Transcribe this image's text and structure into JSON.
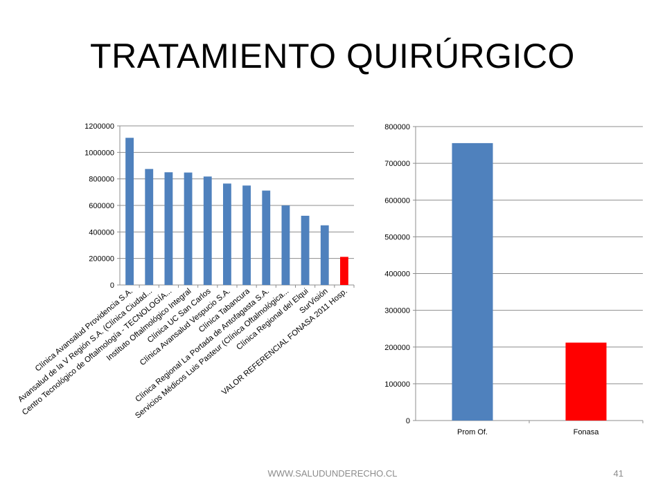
{
  "slide": {
    "title": "TRATAMIENTO QUIRÚRGICO",
    "footer_url": "WWW.SALUDUNDERECHO.CL",
    "page_number": "41"
  },
  "chart_data": [
    {
      "type": "bar",
      "categories": [
        "Clínica Avansalud Providencia S.A.",
        "Avansalud de la V Región S.A. (Clínica Ciudad...",
        "Centro Tecnológico de Oftalmología - TECNOLOGÍA...",
        "Instituto Oftalmológico Integral",
        "Clínica UC San Carlos",
        "Clínica Avansalud Vespucio S.A.",
        "Clínica Tabancura",
        "Clínica Regional La Portada de Antofagasta S.A.",
        "Servicios Médicos Luis Pasteur (Clínica Oftalmológica...",
        "Clínica Regional del Elqui",
        "SurVisión",
        "VALOR REFERENCIAL FONASA 2011 Hosp."
      ],
      "values": [
        1110000,
        875000,
        850000,
        848000,
        818000,
        765000,
        750000,
        712000,
        600000,
        522000,
        450000,
        212000
      ],
      "colors": [
        "#4f81bd",
        "#4f81bd",
        "#4f81bd",
        "#4f81bd",
        "#4f81bd",
        "#4f81bd",
        "#4f81bd",
        "#4f81bd",
        "#4f81bd",
        "#4f81bd",
        "#4f81bd",
        "#ff0000"
      ],
      "ylim": [
        0,
        1200000
      ],
      "yticks": [
        "0",
        "200000",
        "400000",
        "600000",
        "800000",
        "1000000",
        "1200000"
      ],
      "grid": true,
      "xlabel": "",
      "ylabel": "",
      "title": ""
    },
    {
      "type": "bar",
      "categories": [
        "Prom Of.",
        "Fonasa"
      ],
      "values": [
        755000,
        212000
      ],
      "colors": [
        "#4f81bd",
        "#ff0000"
      ],
      "ylim": [
        0,
        800000
      ],
      "yticks": [
        "0",
        "100000",
        "200000",
        "300000",
        "400000",
        "500000",
        "600000",
        "700000",
        "800000"
      ],
      "grid": true,
      "xlabel": "",
      "ylabel": "",
      "title": ""
    }
  ]
}
